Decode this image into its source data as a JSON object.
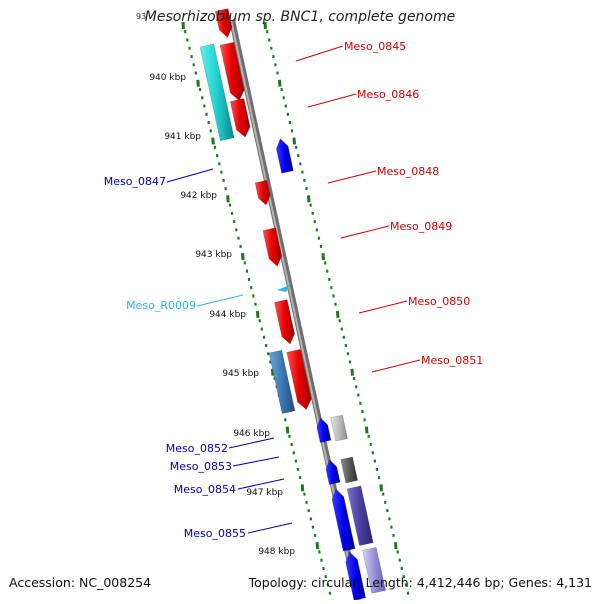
{
  "title": "Mesorhizobium sp. BNC1, complete genome",
  "title_prefix_fragment": "93",
  "accession_text": "Accession: NC_008254",
  "topology_text": "Topology: circular; Length: 4,412,446 bp; Genes: 4,131",
  "colors": {
    "backbone": "#8c8c8c",
    "tick": "#1a7a1a",
    "forward_label": "#d40000",
    "reverse_label": "#0000b0",
    "rna_label": "#29b6e6"
  },
  "kbp_labels": [
    "940 kbp",
    "941 kbp",
    "942 kbp",
    "943 kbp",
    "944 kbp",
    "945 kbp",
    "946 kbp",
    "947 kbp",
    "948 kbp"
  ],
  "gene_labels": [
    {
      "text": "Meso_0845",
      "strand": "forward"
    },
    {
      "text": "Meso_0846",
      "strand": "forward"
    },
    {
      "text": "Meso_0848",
      "strand": "forward"
    },
    {
      "text": "Meso_0849",
      "strand": "forward"
    },
    {
      "text": "Meso_0850",
      "strand": "forward"
    },
    {
      "text": "Meso_0851",
      "strand": "forward"
    },
    {
      "text": "Meso_0847",
      "strand": "reverse"
    },
    {
      "text": "Meso_R0009",
      "strand": "rna"
    },
    {
      "text": "Meso_0852",
      "strand": "reverse"
    },
    {
      "text": "Meso_0853",
      "strand": "reverse"
    },
    {
      "text": "Meso_0854",
      "strand": "reverse"
    },
    {
      "text": "Meso_0855",
      "strand": "reverse"
    }
  ]
}
